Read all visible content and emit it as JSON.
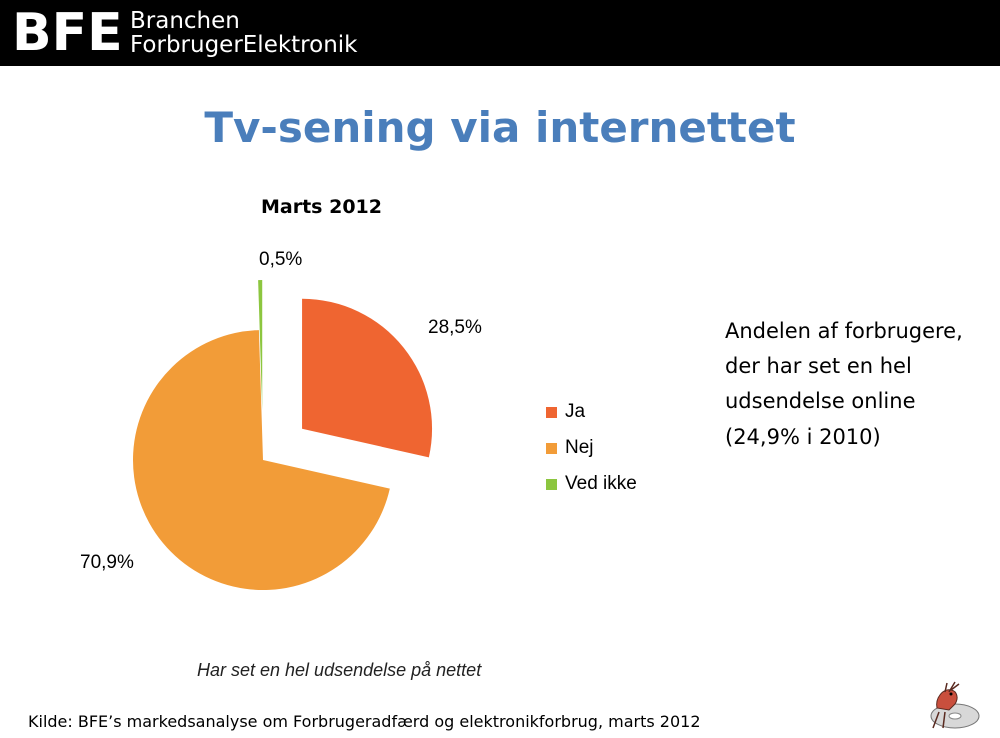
{
  "header": {
    "logo_mark": "BFE",
    "logo_line1": "Branchen",
    "logo_line2": "ForbrugerElektronik"
  },
  "slide": {
    "title": "Tv-sening via internettet",
    "side_text": "Andelen af forbrugere, der har set en hel udsendelse online",
    "side_sub": "(24,9% i 2010)",
    "source": "Kilde: BFE’s markedsanalyse om Forbrugeradfærd og elektronikforbrug, marts 2012"
  },
  "chart_data": {
    "type": "pie",
    "title": "Marts 2012",
    "caption": "Har set en hel udsendelse på nettet",
    "slices": [
      {
        "name": "Ja",
        "value": 28.5,
        "label": "28,5%",
        "color": "#ef6531"
      },
      {
        "name": "Nej",
        "value": 70.9,
        "label": "70,9%",
        "color": "#f29c38"
      },
      {
        "name": "Ved ikke",
        "value": 0.5,
        "label": "0,5%",
        "color": "#8cc63f"
      }
    ],
    "exploded": [
      "Ja",
      "Ved ikke"
    ],
    "legend_position": "right"
  },
  "decor": {
    "mascot": "bird-on-disc-icon"
  }
}
